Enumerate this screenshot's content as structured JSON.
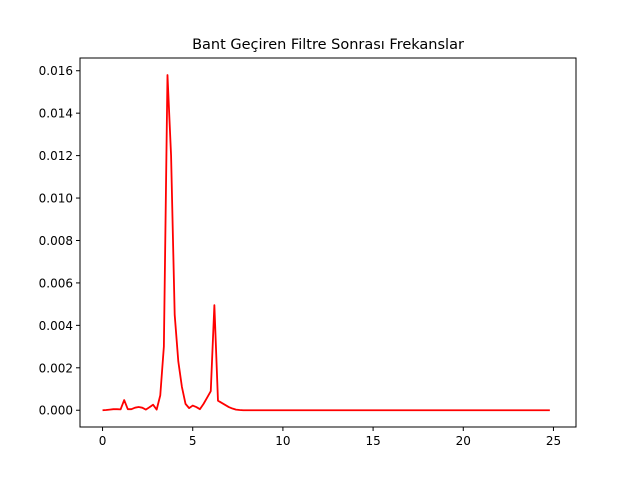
{
  "chart_data": {
    "type": "line",
    "title": "Bant Geçiren Filtre Sonrası Frekanslar",
    "xlabel": "",
    "ylabel": "",
    "xlim": [
      -1.25,
      26.25
    ],
    "ylim": [
      -0.00079,
      0.0166
    ],
    "x_ticks": [
      0,
      5,
      10,
      15,
      20,
      25
    ],
    "x_tick_labels": [
      "0",
      "5",
      "10",
      "15",
      "20",
      "25"
    ],
    "y_ticks": [
      0,
      0.002,
      0.004,
      0.006,
      0.008,
      0.01,
      0.012,
      0.014,
      0.016
    ],
    "y_tick_labels": [
      "0.000",
      "0.002",
      "0.004",
      "0.006",
      "0.008",
      "0.010",
      "0.012",
      "0.014",
      "0.016"
    ],
    "grid": false,
    "series": [
      {
        "color": "#ff0000",
        "x": [
          0,
          0.2,
          0.4,
          0.6,
          0.8,
          1.0,
          1.2,
          1.4,
          1.6,
          1.8,
          2.0,
          2.2,
          2.4,
          2.6,
          2.8,
          3.0,
          3.2,
          3.4,
          3.6,
          3.8,
          4.0,
          4.2,
          4.4,
          4.6,
          4.8,
          5.0,
          5.2,
          5.4,
          5.6,
          5.8,
          6.0,
          6.2,
          6.4,
          6.6,
          6.8,
          7.0,
          7.2,
          7.4,
          7.6,
          7.8,
          8.0,
          9.0,
          10.0,
          12.0,
          15.0,
          20.0,
          24.8
        ],
        "y": [
          0,
          1e-05,
          3e-05,
          5e-05,
          5e-05,
          4e-05,
          0.00048,
          5e-05,
          5e-05,
          0.00012,
          0.00015,
          0.00012,
          3e-05,
          0.00014,
          0.00026,
          3e-05,
          0.0007,
          0.003,
          0.0158,
          0.012,
          0.0045,
          0.0023,
          0.0011,
          0.0003,
          0.0001,
          0.00022,
          0.00015,
          5e-05,
          0.0003,
          0.0006,
          0.0009,
          0.00495,
          0.00045,
          0.00035,
          0.00025,
          0.00015,
          8e-05,
          3e-05,
          1e-05,
          0,
          0,
          0,
          0,
          0,
          0,
          0,
          0
        ]
      }
    ]
  }
}
